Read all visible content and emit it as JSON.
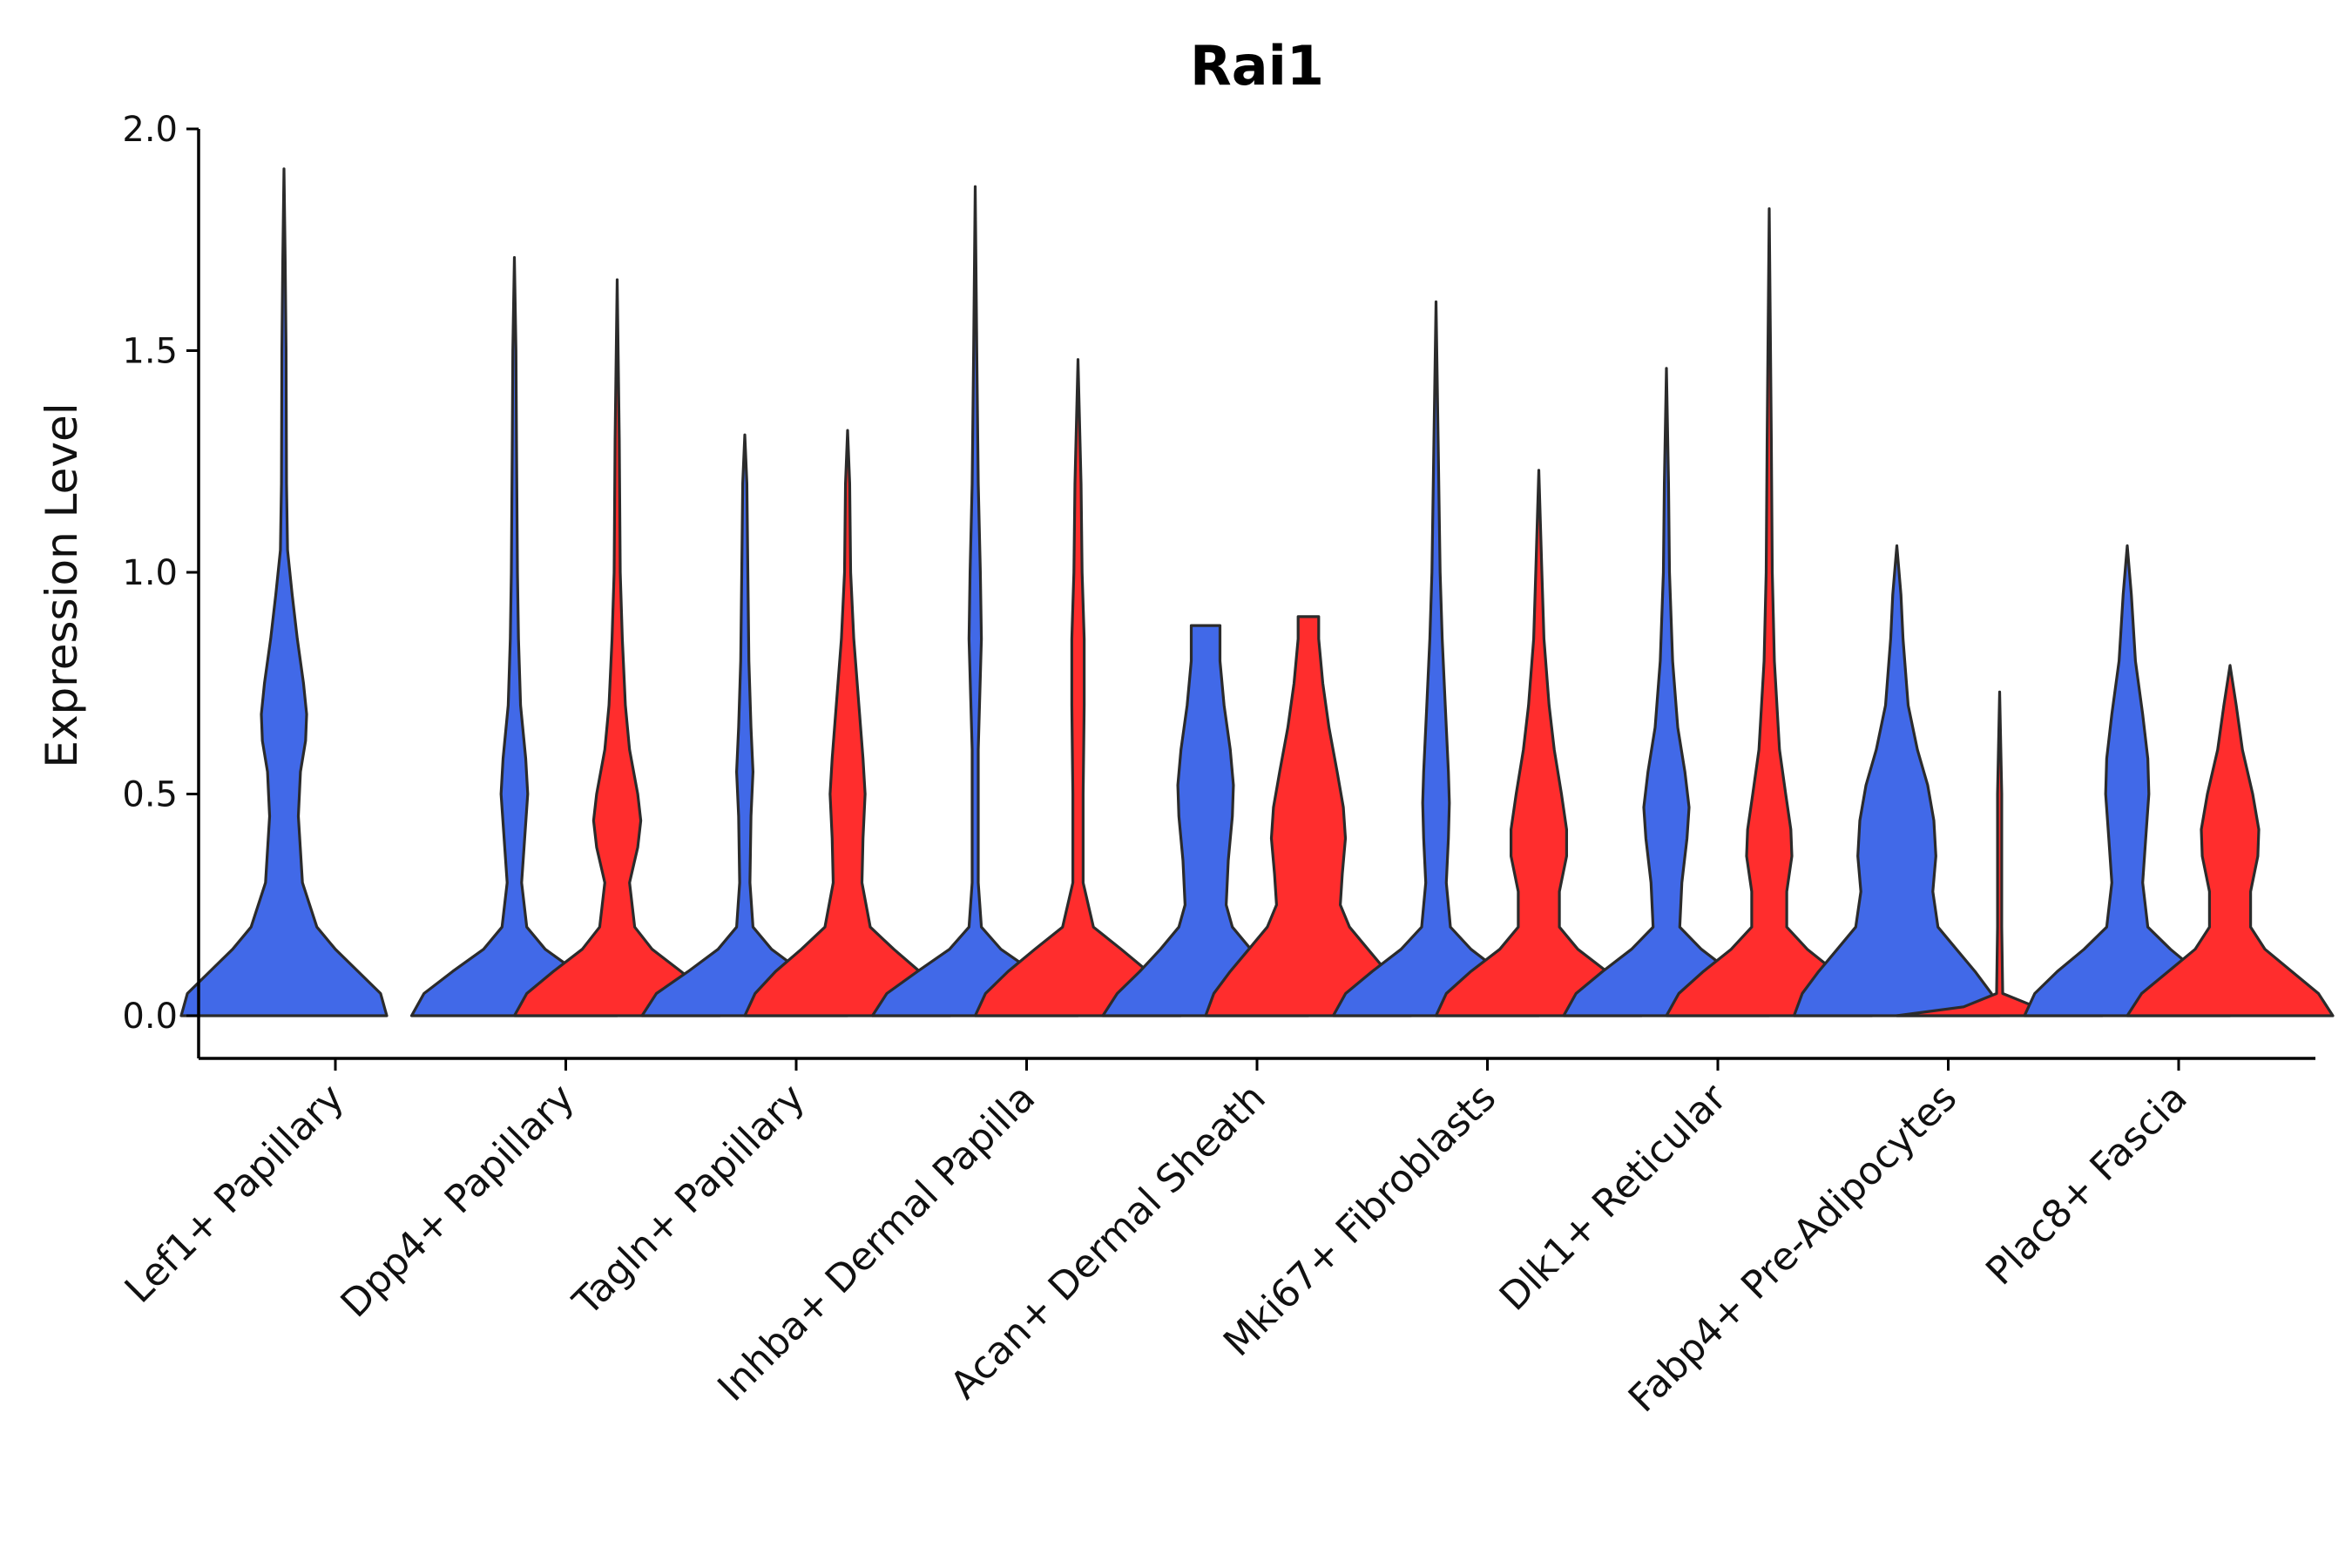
{
  "chart_data": {
    "type": "violin",
    "title": "Rai1",
    "xlabel": "",
    "ylabel": "Expression Level",
    "ylim": [
      -0.1,
      2.0
    ],
    "yticks": [
      0.0,
      0.5,
      1.0,
      1.5,
      2.0
    ],
    "ytick_labels": [
      "0.0",
      "0.5",
      "1.0",
      "1.5",
      "2.0"
    ],
    "grid": false,
    "legend": "none",
    "colors": {
      "group1": "#4169e8",
      "group2": "#ff2d2d"
    },
    "categories": [
      "Lef1+ Papillary",
      "Dpp4+ Papillary",
      "Tagln+ Papillary",
      "Inhba+ Dermal Papilla",
      "Acan+ Dermal Sheath",
      "Mki67+ Fibroblasts",
      "Dlk1+ Reticular",
      "Fabp4+ Pre-Adipocytes",
      "Plac8+ Fascia"
    ],
    "violins": [
      {
        "category": 0,
        "group": 1,
        "max": 1.91,
        "profile": [
          [
            0,
            1
          ],
          [
            0.05,
            0.94
          ],
          [
            0.1,
            0.72
          ],
          [
            0.15,
            0.5
          ],
          [
            0.2,
            0.32
          ],
          [
            0.3,
            0.18
          ],
          [
            0.45,
            0.14
          ],
          [
            0.55,
            0.16
          ],
          [
            0.62,
            0.21
          ],
          [
            0.68,
            0.22
          ],
          [
            0.75,
            0.19
          ],
          [
            0.85,
            0.13
          ],
          [
            0.95,
            0.08
          ],
          [
            1.05,
            0.035
          ],
          [
            1.2,
            0.025
          ],
          [
            1.5,
            0.02
          ],
          [
            1.7,
            0.012
          ],
          [
            1.91,
            0
          ]
        ]
      },
      {
        "category": 1,
        "group": 1,
        "max": 1.71,
        "profile": [
          [
            0,
            1
          ],
          [
            0.05,
            0.88
          ],
          [
            0.1,
            0.6
          ],
          [
            0.15,
            0.3
          ],
          [
            0.2,
            0.12
          ],
          [
            0.3,
            0.07
          ],
          [
            0.4,
            0.1
          ],
          [
            0.5,
            0.13
          ],
          [
            0.58,
            0.11
          ],
          [
            0.7,
            0.06
          ],
          [
            0.85,
            0.04
          ],
          [
            1.0,
            0.03
          ],
          [
            1.3,
            0.02
          ],
          [
            1.5,
            0.015
          ],
          [
            1.71,
            0
          ]
        ]
      },
      {
        "category": 1,
        "group": 2,
        "max": 1.66,
        "profile": [
          [
            0,
            1
          ],
          [
            0.05,
            0.88
          ],
          [
            0.1,
            0.62
          ],
          [
            0.15,
            0.34
          ],
          [
            0.2,
            0.17
          ],
          [
            0.3,
            0.12
          ],
          [
            0.38,
            0.2
          ],
          [
            0.44,
            0.23
          ],
          [
            0.5,
            0.2
          ],
          [
            0.6,
            0.12
          ],
          [
            0.7,
            0.08
          ],
          [
            0.85,
            0.05
          ],
          [
            1.0,
            0.03
          ],
          [
            1.3,
            0.02
          ],
          [
            1.66,
            0
          ]
        ]
      },
      {
        "category": 2,
        "group": 1,
        "max": 1.31,
        "profile": [
          [
            0,
            1
          ],
          [
            0.05,
            0.86
          ],
          [
            0.1,
            0.55
          ],
          [
            0.15,
            0.26
          ],
          [
            0.2,
            0.08
          ],
          [
            0.3,
            0.05
          ],
          [
            0.45,
            0.06
          ],
          [
            0.55,
            0.08
          ],
          [
            0.65,
            0.06
          ],
          [
            0.8,
            0.04
          ],
          [
            1.0,
            0.03
          ],
          [
            1.2,
            0.02
          ],
          [
            1.31,
            0
          ]
        ]
      },
      {
        "category": 2,
        "group": 2,
        "max": 1.32,
        "profile": [
          [
            0,
            1
          ],
          [
            0.05,
            0.9
          ],
          [
            0.1,
            0.7
          ],
          [
            0.15,
            0.45
          ],
          [
            0.2,
            0.22
          ],
          [
            0.3,
            0.14
          ],
          [
            0.4,
            0.15
          ],
          [
            0.5,
            0.17
          ],
          [
            0.58,
            0.15
          ],
          [
            0.7,
            0.11
          ],
          [
            0.85,
            0.06
          ],
          [
            1.0,
            0.03
          ],
          [
            1.2,
            0.02
          ],
          [
            1.32,
            0
          ]
        ]
      },
      {
        "category": 3,
        "group": 1,
        "max": 1.87,
        "profile": [
          [
            0,
            1
          ],
          [
            0.05,
            0.86
          ],
          [
            0.1,
            0.56
          ],
          [
            0.15,
            0.25
          ],
          [
            0.2,
            0.06
          ],
          [
            0.3,
            0.03
          ],
          [
            0.6,
            0.03
          ],
          [
            0.85,
            0.06
          ],
          [
            1.0,
            0.05
          ],
          [
            1.2,
            0.03
          ],
          [
            1.5,
            0.015
          ],
          [
            1.87,
            0
          ]
        ]
      },
      {
        "category": 3,
        "group": 2,
        "max": 1.48,
        "profile": [
          [
            0,
            1
          ],
          [
            0.05,
            0.9
          ],
          [
            0.1,
            0.68
          ],
          [
            0.15,
            0.42
          ],
          [
            0.2,
            0.15
          ],
          [
            0.3,
            0.05
          ],
          [
            0.5,
            0.05
          ],
          [
            0.7,
            0.06
          ],
          [
            0.85,
            0.06
          ],
          [
            1.0,
            0.04
          ],
          [
            1.2,
            0.03
          ],
          [
            1.48,
            0
          ]
        ]
      },
      {
        "category": 4,
        "group": 1,
        "max": 0.88,
        "profile": [
          [
            0,
            1
          ],
          [
            0.05,
            0.86
          ],
          [
            0.1,
            0.64
          ],
          [
            0.15,
            0.44
          ],
          [
            0.2,
            0.26
          ],
          [
            0.25,
            0.2
          ],
          [
            0.35,
            0.22
          ],
          [
            0.45,
            0.26
          ],
          [
            0.52,
            0.27
          ],
          [
            0.6,
            0.24
          ],
          [
            0.7,
            0.18
          ],
          [
            0.8,
            0.14
          ],
          [
            0.88,
            0.14
          ]
        ]
      },
      {
        "category": 4,
        "group": 2,
        "max": 0.9,
        "profile": [
          [
            0,
            1
          ],
          [
            0.05,
            0.92
          ],
          [
            0.1,
            0.76
          ],
          [
            0.15,
            0.58
          ],
          [
            0.2,
            0.4
          ],
          [
            0.25,
            0.31
          ],
          [
            0.32,
            0.33
          ],
          [
            0.4,
            0.36
          ],
          [
            0.47,
            0.34
          ],
          [
            0.55,
            0.28
          ],
          [
            0.65,
            0.2
          ],
          [
            0.75,
            0.14
          ],
          [
            0.85,
            0.1
          ],
          [
            0.9,
            0.1
          ]
        ]
      },
      {
        "category": 5,
        "group": 1,
        "max": 1.61,
        "profile": [
          [
            0,
            1
          ],
          [
            0.05,
            0.88
          ],
          [
            0.1,
            0.62
          ],
          [
            0.15,
            0.34
          ],
          [
            0.2,
            0.14
          ],
          [
            0.3,
            0.1
          ],
          [
            0.4,
            0.12
          ],
          [
            0.48,
            0.13
          ],
          [
            0.55,
            0.12
          ],
          [
            0.7,
            0.09
          ],
          [
            0.85,
            0.06
          ],
          [
            1.0,
            0.04
          ],
          [
            1.3,
            0.02
          ],
          [
            1.61,
            0
          ]
        ]
      },
      {
        "category": 5,
        "group": 2,
        "max": 1.23,
        "profile": [
          [
            0,
            1
          ],
          [
            0.05,
            0.9
          ],
          [
            0.1,
            0.66
          ],
          [
            0.15,
            0.38
          ],
          [
            0.2,
            0.2
          ],
          [
            0.28,
            0.2
          ],
          [
            0.36,
            0.27
          ],
          [
            0.42,
            0.27
          ],
          [
            0.5,
            0.22
          ],
          [
            0.6,
            0.15
          ],
          [
            0.7,
            0.1
          ],
          [
            0.85,
            0.05
          ],
          [
            1.0,
            0.03
          ],
          [
            1.23,
            0
          ]
        ]
      },
      {
        "category": 6,
        "group": 1,
        "max": 1.46,
        "profile": [
          [
            0,
            1
          ],
          [
            0.05,
            0.88
          ],
          [
            0.1,
            0.62
          ],
          [
            0.15,
            0.34
          ],
          [
            0.2,
            0.13
          ],
          [
            0.3,
            0.15
          ],
          [
            0.4,
            0.2
          ],
          [
            0.47,
            0.22
          ],
          [
            0.55,
            0.18
          ],
          [
            0.65,
            0.11
          ],
          [
            0.8,
            0.06
          ],
          [
            1.0,
            0.03
          ],
          [
            1.2,
            0.02
          ],
          [
            1.46,
            0
          ]
        ]
      },
      {
        "category": 6,
        "group": 2,
        "max": 1.82,
        "profile": [
          [
            0,
            1
          ],
          [
            0.05,
            0.88
          ],
          [
            0.1,
            0.64
          ],
          [
            0.15,
            0.37
          ],
          [
            0.2,
            0.17
          ],
          [
            0.28,
            0.17
          ],
          [
            0.36,
            0.22
          ],
          [
            0.42,
            0.21
          ],
          [
            0.5,
            0.16
          ],
          [
            0.6,
            0.1
          ],
          [
            0.8,
            0.05
          ],
          [
            1.0,
            0.03
          ],
          [
            1.3,
            0.02
          ],
          [
            1.82,
            0
          ]
        ]
      },
      {
        "category": 7,
        "group": 1,
        "max": 1.06,
        "profile": [
          [
            0,
            1
          ],
          [
            0.05,
            0.92
          ],
          [
            0.1,
            0.76
          ],
          [
            0.15,
            0.58
          ],
          [
            0.2,
            0.4
          ],
          [
            0.28,
            0.35
          ],
          [
            0.36,
            0.38
          ],
          [
            0.44,
            0.36
          ],
          [
            0.52,
            0.3
          ],
          [
            0.6,
            0.2
          ],
          [
            0.7,
            0.11
          ],
          [
            0.85,
            0.06
          ],
          [
            0.95,
            0.04
          ],
          [
            1.06,
            0
          ]
        ]
      },
      {
        "category": 7,
        "group": 2,
        "max": 0.73,
        "profile": [
          [
            0,
            1
          ],
          [
            0.02,
            0.35
          ],
          [
            0.05,
            0.03
          ],
          [
            0.2,
            0.02
          ],
          [
            0.5,
            0.02
          ],
          [
            0.73,
            0
          ]
        ]
      },
      {
        "category": 8,
        "group": 1,
        "max": 1.06,
        "profile": [
          [
            0,
            1
          ],
          [
            0.05,
            0.9
          ],
          [
            0.1,
            0.68
          ],
          [
            0.15,
            0.42
          ],
          [
            0.2,
            0.2
          ],
          [
            0.3,
            0.15
          ],
          [
            0.4,
            0.18
          ],
          [
            0.5,
            0.21
          ],
          [
            0.58,
            0.2
          ],
          [
            0.68,
            0.15
          ],
          [
            0.8,
            0.08
          ],
          [
            0.95,
            0.04
          ],
          [
            1.06,
            0
          ]
        ]
      },
      {
        "category": 8,
        "group": 2,
        "max": 0.79,
        "profile": [
          [
            0,
            1
          ],
          [
            0.05,
            0.86
          ],
          [
            0.1,
            0.6
          ],
          [
            0.15,
            0.34
          ],
          [
            0.2,
            0.2
          ],
          [
            0.28,
            0.2
          ],
          [
            0.36,
            0.27
          ],
          [
            0.42,
            0.28
          ],
          [
            0.5,
            0.22
          ],
          [
            0.6,
            0.12
          ],
          [
            0.7,
            0.06
          ],
          [
            0.79,
            0
          ]
        ]
      }
    ]
  }
}
